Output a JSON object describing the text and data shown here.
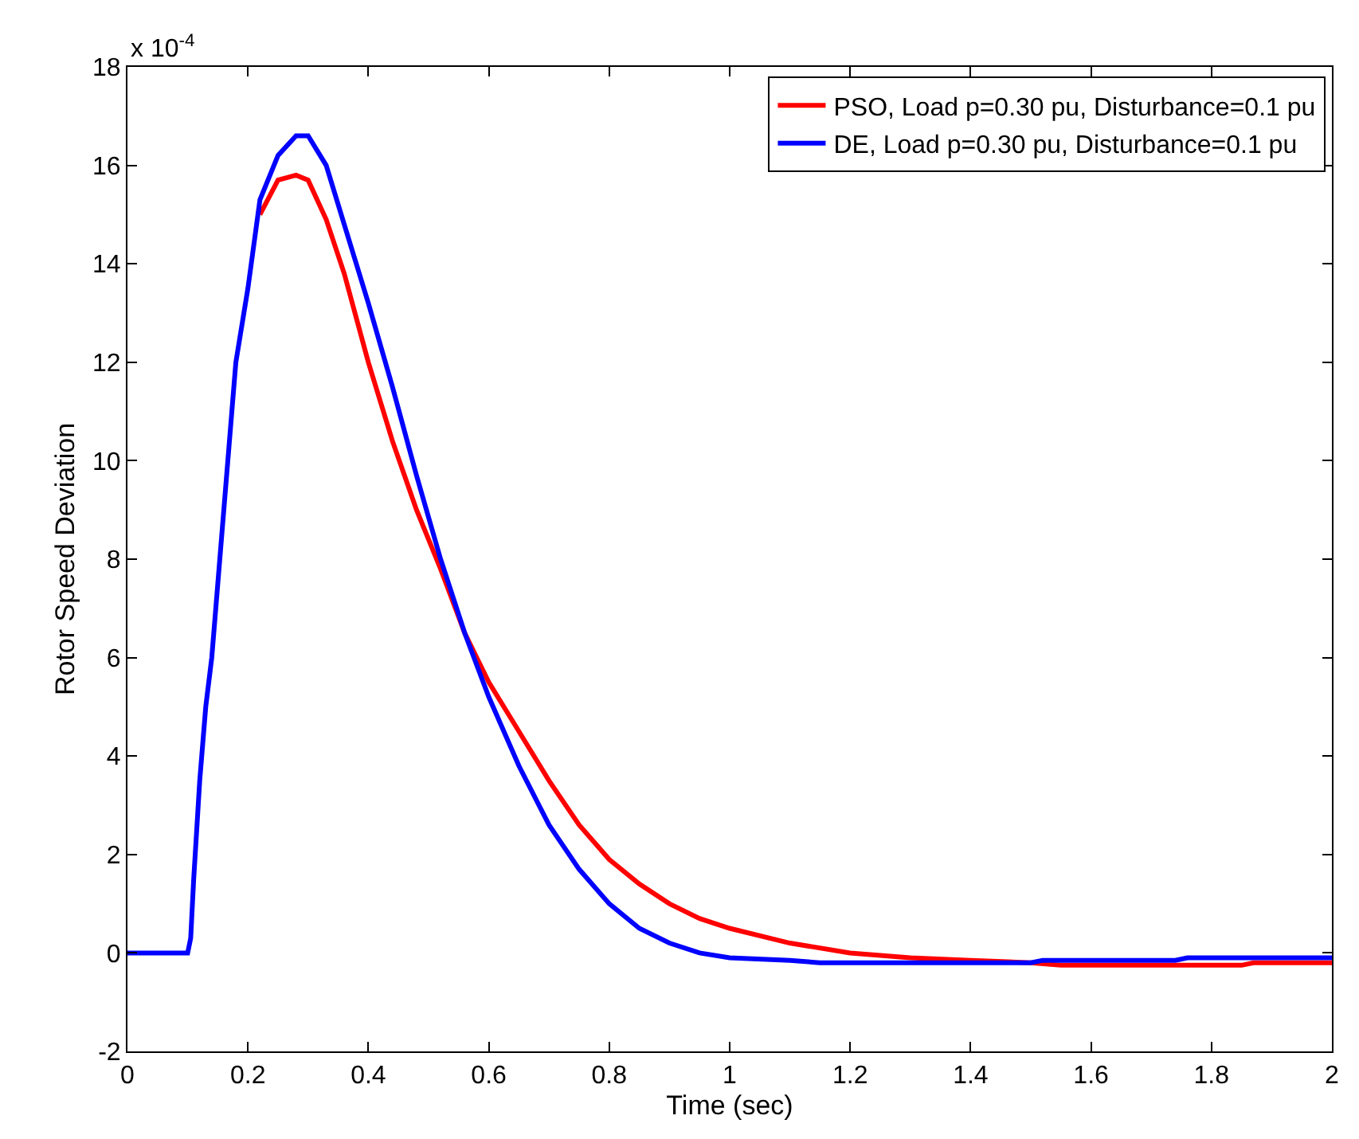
{
  "chart_data": {
    "type": "line",
    "xlabel": "Time (sec)",
    "ylabel": "Rotor Speed Deviation",
    "annotations": [
      "x 10$^{-4}$"
    ],
    "xlim": [
      0,
      2
    ],
    "xticks": [
      0,
      0.2,
      0.4,
      0.6,
      0.8,
      1,
      1.2,
      1.4,
      1.6,
      1.8,
      2
    ],
    "ylim": [
      -2,
      18
    ],
    "yticks": [
      -2,
      0,
      2,
      4,
      6,
      8,
      10,
      12,
      14,
      16,
      18
    ],
    "grid": false,
    "legend": "top right",
    "marker": "none",
    "line_style": "solid",
    "series": [
      {
        "name": "PSO, Load p=0.30 pu, Disturbance=0.1 pu",
        "color": "#ff0000",
        "x": [
          0.22,
          0.25,
          0.28,
          0.3,
          0.33,
          0.36,
          0.4,
          0.44,
          0.48,
          0.52,
          0.56,
          0.6,
          0.65,
          0.7,
          0.75,
          0.8,
          0.85,
          0.9,
          0.95,
          1.0,
          1.1,
          1.2,
          1.3,
          1.4,
          1.5,
          1.55,
          1.85,
          1.87,
          2.0
        ],
        "values": [
          15,
          15.7,
          15.8,
          15.7,
          14.9,
          13.8,
          12.0,
          10.4,
          9.0,
          7.8,
          6.5,
          5.5,
          4.5,
          3.5,
          2.6,
          1.9,
          1.4,
          1.0,
          0.7,
          0.5,
          0.2,
          0.0,
          -0.1,
          -0.15,
          -0.2,
          -0.25,
          -0.25,
          -0.2,
          -0.2
        ]
      },
      {
        "name": "DE, Load p=0.30 pu, Disturbance=0.1 pu",
        "color": "#0000ff",
        "x": [
          0,
          0.1,
          0.105,
          0.11,
          0.12,
          0.13,
          0.14,
          0.16,
          0.18,
          0.2,
          0.22,
          0.25,
          0.28,
          0.3,
          0.33,
          0.36,
          0.4,
          0.44,
          0.48,
          0.52,
          0.56,
          0.6,
          0.65,
          0.7,
          0.75,
          0.8,
          0.85,
          0.9,
          0.95,
          1.0,
          1.1,
          1.15,
          1.5,
          1.52,
          1.74,
          1.76,
          2.0
        ],
        "values": [
          0,
          0,
          0.3,
          1.5,
          3.5,
          5,
          6,
          9,
          12,
          13.5,
          15.3,
          16.2,
          16.6,
          16.6,
          16.0,
          14.8,
          13.2,
          11.5,
          9.7,
          8.0,
          6.5,
          5.2,
          3.8,
          2.6,
          1.7,
          1.0,
          0.5,
          0.2,
          0.0,
          -0.1,
          -0.15,
          -0.2,
          -0.2,
          -0.15,
          -0.15,
          -0.1,
          -0.1
        ]
      }
    ]
  }
}
